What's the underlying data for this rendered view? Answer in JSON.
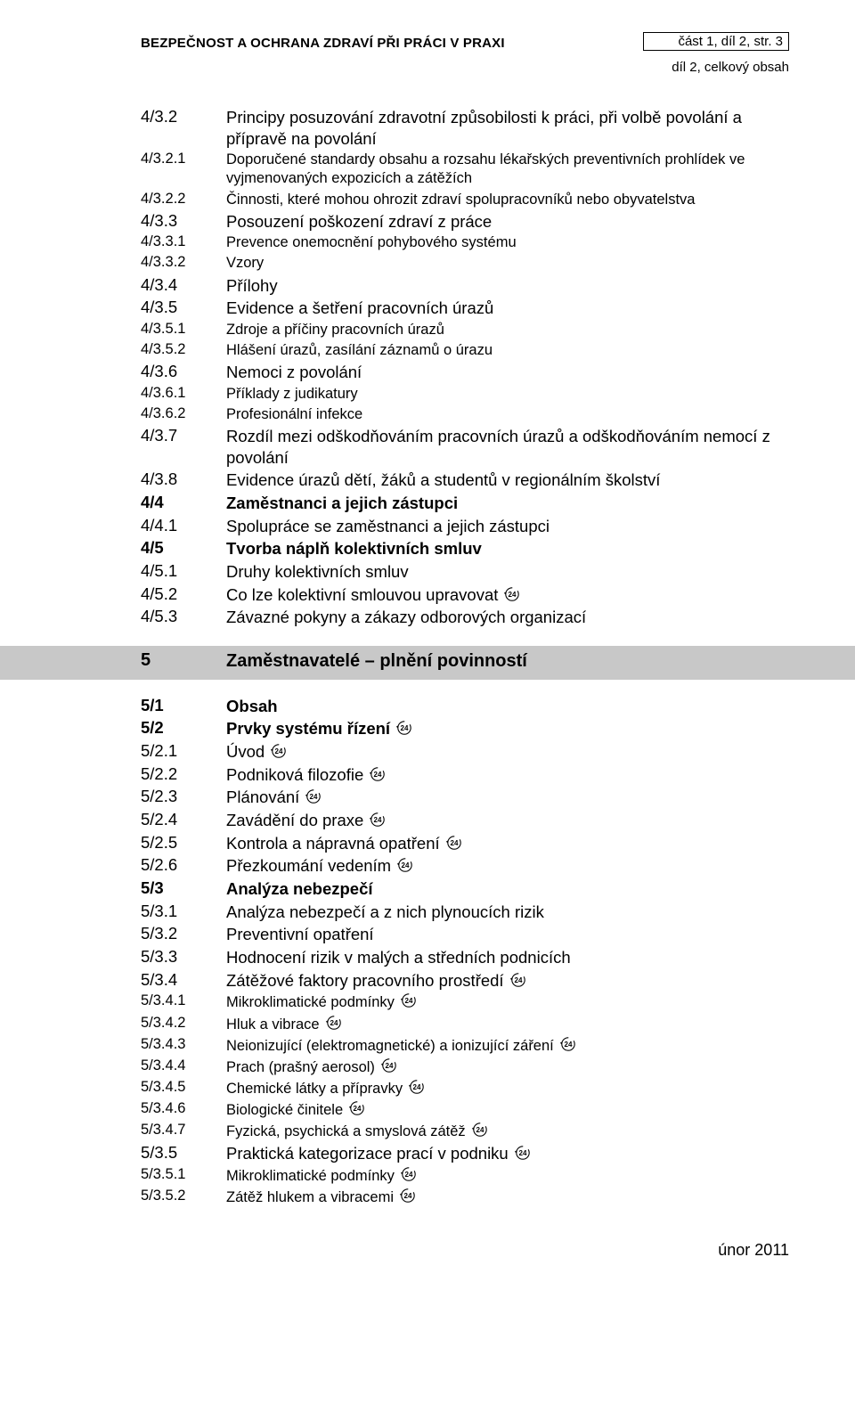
{
  "header": {
    "title": "BEZPEČNOST A OCHRANA ZDRAVÍ PŘI PRÁCI V PRAXI",
    "box": "část 1, díl 2, str. 3",
    "sub": "díl 2, celkový obsah"
  },
  "toc1": [
    {
      "n": "4/3.2",
      "t": "Principy posuzování zdravotní způsobilosti k práci, při volbě povolání a přípravě na povolání",
      "lvl": "a",
      "bold": false
    },
    {
      "n": "4/3.2.1",
      "t": "Doporučené standardy obsahu a rozsahu lékařských preventivních prohlídek ve vyjmenovaných expozicích a zátěžích",
      "lvl": "b",
      "bold": false
    },
    {
      "n": "4/3.2.2",
      "t": "Činnosti, které mohou ohrozit zdraví spolupracovníků nebo obyvatelstva",
      "lvl": "b",
      "bold": false
    },
    {
      "n": "4/3.3",
      "t": "Posouzení poškození zdraví z práce",
      "lvl": "a",
      "bold": false
    },
    {
      "n": "4/3.3.1",
      "t": "Prevence onemocnění pohybového systému",
      "lvl": "b",
      "bold": false
    },
    {
      "n": "4/3.3.2",
      "t": "Vzory",
      "lvl": "b",
      "bold": false
    },
    {
      "n": "4/3.4",
      "t": "Přílohy",
      "lvl": "a",
      "bold": false
    },
    {
      "n": "4/3.5",
      "t": "Evidence a šetření pracovních úrazů",
      "lvl": "a",
      "bold": false
    },
    {
      "n": "4/3.5.1",
      "t": "Zdroje a příčiny pracovních úrazů",
      "lvl": "b",
      "bold": false
    },
    {
      "n": "4/3.5.2",
      "t": "Hlášení úrazů, zasílání záznamů o úrazu",
      "lvl": "b",
      "bold": false
    },
    {
      "n": "4/3.6",
      "t": "Nemoci z povolání",
      "lvl": "a",
      "bold": false
    },
    {
      "n": "4/3.6.1",
      "t": "Příklady z judikatury",
      "lvl": "b",
      "bold": false
    },
    {
      "n": "4/3.6.2",
      "t": "Profesionální infekce",
      "lvl": "b",
      "bold": false
    },
    {
      "n": "4/3.7",
      "t": "Rozdíl mezi odškodňováním pracovních úrazů a odškodňováním nemocí z povolání",
      "lvl": "a",
      "bold": false
    },
    {
      "n": "4/3.8",
      "t": "Evidence úrazů dětí, žáků a studentů v regionálním školství",
      "lvl": "a",
      "bold": false
    },
    {
      "n": "4/4",
      "t": "Zaměstnanci a jejich zástupci",
      "lvl": "a",
      "bold": true
    },
    {
      "n": "4/4.1",
      "t": "Spolupráce se zaměstnanci a jejich zástupci",
      "lvl": "a",
      "bold": false
    },
    {
      "n": "4/5",
      "t": "Tvorba náplň kolektivních smluv",
      "lvl": "a",
      "bold": true
    },
    {
      "n": "4/5.1",
      "t": "Druhy kolektivních smluv",
      "lvl": "a",
      "bold": false
    },
    {
      "n": "4/5.2",
      "t": "Co lze kolektivní smlouvou upravovat",
      "lvl": "a",
      "bold": false,
      "icon": true
    },
    {
      "n": "4/5.3",
      "t": "Závazné pokyny a zákazy odborových organizací",
      "lvl": "a",
      "bold": false
    }
  ],
  "section5": {
    "n": "5",
    "t": "Zaměstnavatelé – plnění povinností"
  },
  "toc2": [
    {
      "n": "5/1",
      "t": "Obsah",
      "lvl": "a",
      "bold": true
    },
    {
      "n": "5/2",
      "t": "Prvky systému řízení",
      "lvl": "a",
      "bold": true,
      "icon": true
    },
    {
      "n": "5/2.1",
      "t": "Úvod",
      "lvl": "a",
      "bold": false,
      "icon": true
    },
    {
      "n": "5/2.2",
      "t": "Podniková filozofie",
      "lvl": "a",
      "bold": false,
      "icon": true
    },
    {
      "n": "5/2.3",
      "t": "Plánování",
      "lvl": "a",
      "bold": false,
      "icon": true
    },
    {
      "n": "5/2.4",
      "t": "Zavádění do praxe",
      "lvl": "a",
      "bold": false,
      "icon": true
    },
    {
      "n": "5/2.5",
      "t": "Kontrola a nápravná opatření",
      "lvl": "a",
      "bold": false,
      "icon": true
    },
    {
      "n": "5/2.6",
      "t": "Přezkoumání vedením",
      "lvl": "a",
      "bold": false,
      "icon": true
    },
    {
      "n": "5/3",
      "t": "Analýza nebezpečí",
      "lvl": "a",
      "bold": true
    },
    {
      "n": "5/3.1",
      "t": "Analýza nebezpečí a z nich plynoucích rizik",
      "lvl": "a",
      "bold": false
    },
    {
      "n": "5/3.2",
      "t": "Preventivní opatření",
      "lvl": "a",
      "bold": false
    },
    {
      "n": "5/3.3",
      "t": "Hodnocení rizik v malých a středních podnicích",
      "lvl": "a",
      "bold": false
    },
    {
      "n": "5/3.4",
      "t": "Zátěžové faktory pracovního prostředí",
      "lvl": "a",
      "bold": false,
      "icon": true
    },
    {
      "n": "5/3.4.1",
      "t": "Mikroklimatické podmínky",
      "lvl": "b",
      "bold": false,
      "icon": true
    },
    {
      "n": "5/3.4.2",
      "t": "Hluk a vibrace",
      "lvl": "b",
      "bold": false,
      "icon": true
    },
    {
      "n": "5/3.4.3",
      "t": "Neionizující (elektromagnetické) a ionizující záření",
      "lvl": "b",
      "bold": false,
      "icon": true
    },
    {
      "n": "5/3.4.4",
      "t": "Prach (prašný aerosol)",
      "lvl": "b",
      "bold": false,
      "icon": true
    },
    {
      "n": "5/3.4.5",
      "t": "Chemické látky a přípravky",
      "lvl": "b",
      "bold": false,
      "icon": true
    },
    {
      "n": "5/3.4.6",
      "t": "Biologické činitele",
      "lvl": "b",
      "bold": false,
      "icon": true
    },
    {
      "n": "5/3.4.7",
      "t": "Fyzická, psychická a smyslová zátěž",
      "lvl": "b",
      "bold": false,
      "icon": true
    },
    {
      "n": "5/3.5",
      "t": "Praktická kategorizace prací v podniku",
      "lvl": "a",
      "bold": false,
      "icon": true
    },
    {
      "n": "5/3.5.1",
      "t": "Mikroklimatické podmínky",
      "lvl": "b",
      "bold": false,
      "icon": true
    },
    {
      "n": "5/3.5.2",
      "t": "Zátěž hlukem a vibracemi",
      "lvl": "b",
      "bold": false,
      "icon": true
    }
  ],
  "footer": "únor 2011",
  "icon_label": "24"
}
